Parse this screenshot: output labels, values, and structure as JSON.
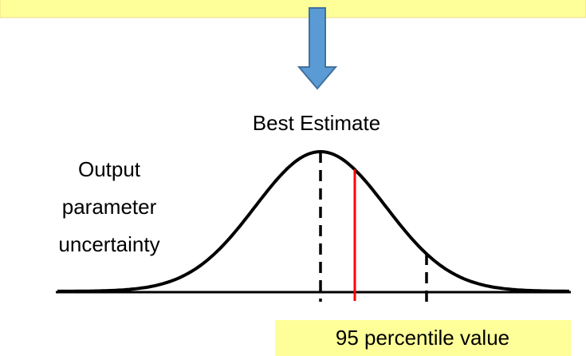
{
  "labels": {
    "best_estimate": "Best Estimate",
    "output_lines": [
      "Output",
      "parameter",
      "uncertainty"
    ],
    "percentile_box": "95 percentile value"
  }
}
